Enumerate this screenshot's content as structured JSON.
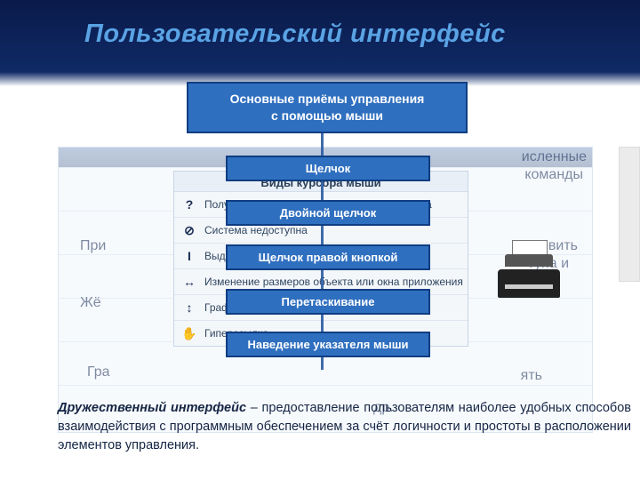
{
  "title": "Пользовательский интерфейс",
  "main_header": "Основные приёмы управления\nс помощью мыши",
  "chips": {
    "c1": "Щелчок",
    "c2": "Двойной щелчок",
    "c3": "Щелчок правой кнопкой",
    "c4": "Перетаскивание",
    "c5": "Наведение указателя мыши"
  },
  "cursor_card": {
    "title": "Виды курсора мыши",
    "rows": [
      {
        "icon": "?",
        "label": "Получение подсказки к элементу интерфейса"
      },
      {
        "icon": "⊘",
        "label": "Система недоступна"
      },
      {
        "icon": "I",
        "label": "Выделение текста"
      },
      {
        "icon": "↔",
        "label": "Изменение размеров объекта или окна приложения"
      },
      {
        "icon": "↕",
        "label": "Графическое выделение"
      },
      {
        "icon": "✋",
        "label": "Гиперссылка"
      }
    ]
  },
  "bg_text": {
    "t1": "исленные",
    "t2": "команды",
    "t3": "При",
    "t4": "ановить",
    "t5": "тупа и",
    "t6": "Жё",
    "t7": "Гра",
    "t8": "ять",
    "t9": "др."
  },
  "paragraph": {
    "lead": "Дружественный интерфейс",
    "rest": "– предоставление пользователям наиболее удобных способов взаимодействия с программным обеспечением за счёт логичности и простоты в расположении элементов управления."
  },
  "colors": {
    "chip_bg": "#2f6fbf",
    "chip_border": "#0f3d82",
    "title_color": "#5aa3e4",
    "connector": "#2a5ba3"
  }
}
